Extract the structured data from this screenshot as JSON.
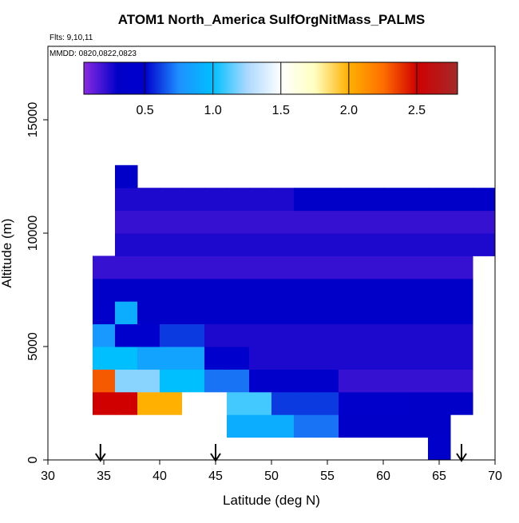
{
  "chart_data": {
    "type": "heatmap",
    "title": "ATOM1 North_America SulfOrgNitMass_PALMS",
    "flights": "Flts: 9,10,11",
    "dates": "MMDD: 0820,0822,0823",
    "xlabel": "Latitude (deg N)",
    "ylabel": "Altitude (m)",
    "xlim": [
      30,
      70
    ],
    "ylim": [
      0,
      18240
    ],
    "xticks": [
      30,
      35,
      40,
      45,
      50,
      55,
      60,
      65,
      70
    ],
    "yticks": [
      0,
      5000,
      10000,
      15000
    ],
    "x_edges": [
      34,
      36,
      38,
      40,
      42,
      44,
      46,
      48,
      50,
      52,
      54,
      56,
      58,
      60,
      62,
      64,
      66,
      68,
      70
    ],
    "y_edges": [
      0,
      1000,
      2000,
      3000,
      4000,
      5000,
      6000,
      7000,
      8000,
      9000,
      10000,
      11000,
      12000,
      13000
    ],
    "values": [
      [
        null,
        null,
        null,
        null,
        null,
        null,
        null,
        null,
        null,
        null,
        null,
        null,
        null,
        null,
        null,
        0.4,
        null,
        null
      ],
      [
        null,
        null,
        null,
        null,
        null,
        null,
        0.9,
        0.9,
        0.9,
        0.7,
        0.7,
        0.3,
        0.3,
        0.3,
        0.3,
        0.3,
        null,
        null
      ],
      [
        2.5,
        2.5,
        2.0,
        2.0,
        1.5,
        1.5,
        1.1,
        1.1,
        0.6,
        0.6,
        0.6,
        0.4,
        0.4,
        0.4,
        0.3,
        0.3,
        0.3,
        null
      ],
      [
        2.3,
        1.2,
        1.2,
        1.0,
        1.0,
        0.7,
        0.7,
        0.4,
        0.4,
        0.4,
        0.4,
        0.2,
        0.2,
        0.2,
        0.2,
        0.2,
        0.2,
        null
      ],
      [
        1.0,
        1.0,
        0.85,
        0.85,
        0.85,
        0.5,
        0.5,
        0.25,
        0.25,
        0.25,
        0.25,
        0.25,
        0.25,
        0.25,
        0.25,
        0.25,
        0.25,
        null
      ],
      [
        0.8,
        0.5,
        0.5,
        0.6,
        0.6,
        0.25,
        0.25,
        0.25,
        0.25,
        0.25,
        0.25,
        0.25,
        0.25,
        0.25,
        0.25,
        0.25,
        0.25,
        null
      ],
      [
        0.4,
        0.9,
        0.3,
        0.3,
        0.3,
        0.3,
        0.3,
        0.3,
        0.3,
        0.3,
        0.3,
        0.3,
        0.3,
        0.3,
        0.3,
        0.3,
        0.3,
        null
      ],
      [
        0.3,
        0.3,
        0.3,
        0.3,
        0.3,
        0.3,
        0.3,
        0.3,
        0.3,
        0.3,
        0.3,
        0.3,
        0.3,
        0.3,
        0.3,
        0.3,
        0.3,
        null
      ],
      [
        0.2,
        0.2,
        0.2,
        0.2,
        0.2,
        0.2,
        0.2,
        0.2,
        0.2,
        0.2,
        0.2,
        0.2,
        0.2,
        0.2,
        0.2,
        0.2,
        0.2,
        null
      ],
      [
        null,
        0.25,
        0.25,
        0.25,
        0.25,
        0.25,
        0.25,
        0.25,
        0.25,
        0.25,
        0.25,
        0.25,
        0.25,
        0.25,
        0.25,
        0.25,
        0.25,
        0.25
      ],
      [
        null,
        0.2,
        0.2,
        0.2,
        0.2,
        0.2,
        0.2,
        0.2,
        0.2,
        0.2,
        0.2,
        0.2,
        0.2,
        0.2,
        0.2,
        0.2,
        0.2,
        0.2
      ],
      [
        null,
        0.25,
        0.25,
        0.25,
        0.25,
        0.25,
        0.25,
        0.25,
        0.25,
        0.3,
        0.3,
        0.3,
        0.35,
        0.35,
        0.35,
        0.35,
        0.35,
        0.35
      ],
      [
        null,
        0.3,
        null,
        null,
        null,
        null,
        null,
        null,
        null,
        null,
        null,
        null,
        null,
        null,
        null,
        null,
        null,
        null
      ]
    ],
    "markers": [
      34.7,
      45,
      67
    ],
    "colorbar_lim": [
      0.05,
      2.8
    ],
    "colorbar_ticks": [
      0.5,
      {
        "value": 1,
        "label": "1.0"
      },
      1.5,
      {
        "value": 2,
        "label": "2.0"
      },
      2.5
    ],
    "colorscale": [
      [
        0.05,
        "#8a2be2"
      ],
      [
        0.3,
        "#0000c8"
      ],
      [
        0.5,
        "#0000cd"
      ],
      [
        0.75,
        "#1e90ff"
      ],
      [
        1.0,
        "#00bfff"
      ],
      [
        1.25,
        "#aad8ff"
      ],
      [
        1.5,
        "#ffffff"
      ],
      [
        1.75,
        "#ffffc0"
      ],
      [
        2.0,
        "#ffb000"
      ],
      [
        2.25,
        "#ff7000"
      ],
      [
        2.5,
        "#d00000"
      ],
      [
        2.8,
        "#a52a2a"
      ]
    ]
  }
}
